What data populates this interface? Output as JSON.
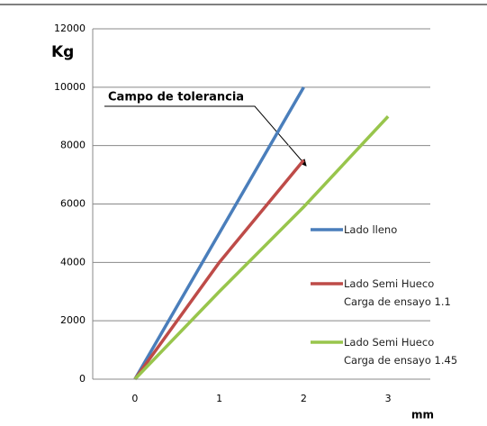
{
  "chart_data": {
    "type": "line",
    "y_label": "Kg",
    "x_label": "mm",
    "annotation": "Campo de tolerancia",
    "xlim": [
      -0.5,
      3.5
    ],
    "xticks": [
      0,
      1,
      2,
      3
    ],
    "ylim": [
      0,
      12000
    ],
    "yticks": [
      0,
      2000,
      4000,
      6000,
      8000,
      10000,
      12000
    ],
    "grid": true,
    "series": [
      {
        "name": "Lado lleno",
        "color": "#4a7ebb",
        "x": [
          0,
          2
        ],
        "values": [
          0,
          10000
        ]
      },
      {
        "name": "Lado Semi Hueco\nCarga de ensayo 1.1",
        "color": "#be4b48",
        "x": [
          0,
          1,
          2
        ],
        "values": [
          0,
          4000,
          7500
        ]
      },
      {
        "name": "Lado Semi Hueco\nCarga de ensayo 1.45",
        "color": "#98c54c",
        "x": [
          0,
          1,
          2,
          3
        ],
        "values": [
          0,
          3000,
          5900,
          9000
        ]
      }
    ]
  }
}
